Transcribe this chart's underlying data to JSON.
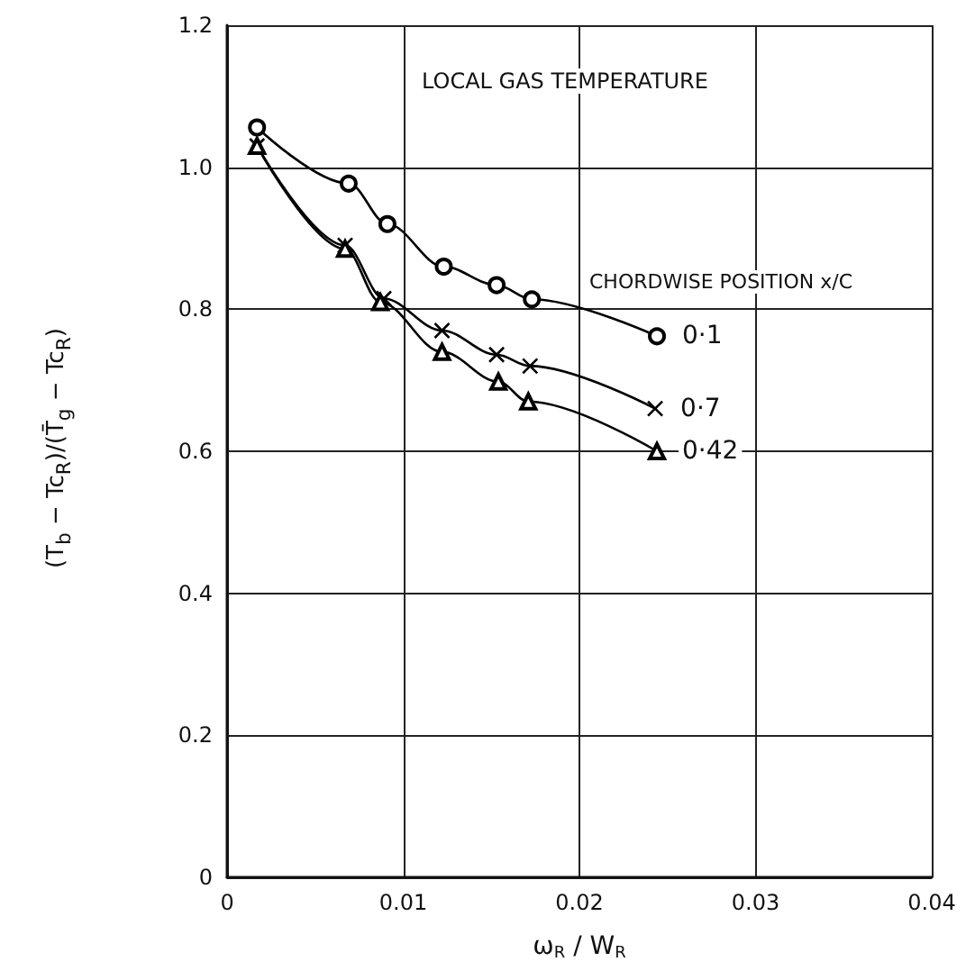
{
  "chart_data": {
    "type": "line",
    "xlabel": "ω$_{R}$ / W$_{R}$",
    "ylabel": "(T$_{b}$ − Tc$_{R}$)/(T̄$_{g}$ − Tc$_{R}$)",
    "legend_title": "CHORDWISE POSITION x/C",
    "annotations": [
      "LOCAL GAS TEMPERATURE"
    ],
    "xlim": [
      0,
      0.04
    ],
    "ylim": [
      0,
      1.2
    ],
    "xticks": [
      0,
      0.01,
      0.02,
      0.03,
      0.04
    ],
    "yticks": [
      0,
      0.2,
      0.4,
      0.6,
      0.8,
      {
        "value": 1,
        "label": "1.0"
      },
      1.2
    ],
    "grid": true,
    "legend": false,
    "series": [
      {
        "name": "0·1",
        "color": "#000000",
        "marker": "circle",
        "x": [
          0.0017,
          0.0069,
          0.0091,
          0.0123,
          0.0153,
          0.0173,
          0.0244
        ],
        "values": [
          1.056,
          0.977,
          0.92,
          0.86,
          0.834,
          0.814,
          0.762
        ]
      },
      {
        "name": "0·7",
        "color": "#000000",
        "marker": "cross",
        "x": [
          0.0017,
          0.0067,
          0.0089,
          0.0122,
          0.0153,
          0.0172,
          0.0243
        ],
        "values": [
          1.03,
          0.89,
          0.815,
          0.77,
          0.736,
          0.72,
          0.66
        ]
      },
      {
        "name": "0·42",
        "color": "#000000",
        "marker": "triangle",
        "x": [
          0.0017,
          0.0067,
          0.0087,
          0.0122,
          0.0154,
          0.0171,
          0.0244
        ],
        "values": [
          1.03,
          0.885,
          0.81,
          0.74,
          0.698,
          0.67,
          0.6
        ]
      }
    ]
  }
}
